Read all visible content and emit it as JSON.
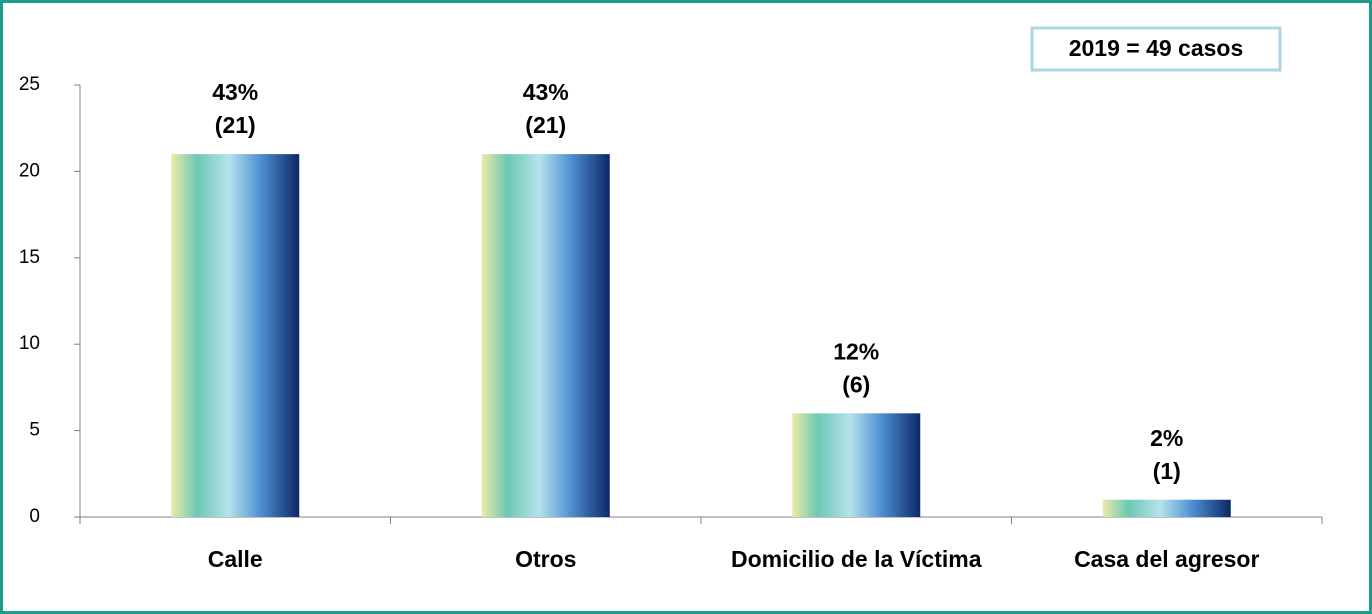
{
  "chart_data": {
    "type": "bar",
    "annotation": "2019 = 49 casos",
    "categories": [
      "Calle",
      "Otros",
      "Domicilio de la Víctima",
      "Casa del agresor"
    ],
    "values": [
      21,
      21,
      6,
      1
    ],
    "value_labels": [
      "(21)",
      "(21)",
      "(6)",
      "(1)"
    ],
    "percent_labels": [
      "43%",
      "43%",
      "12%",
      "2%"
    ],
    "ylim": [
      0,
      25
    ],
    "yticks": [
      0,
      5,
      10,
      15,
      20,
      25
    ],
    "grid": false
  }
}
